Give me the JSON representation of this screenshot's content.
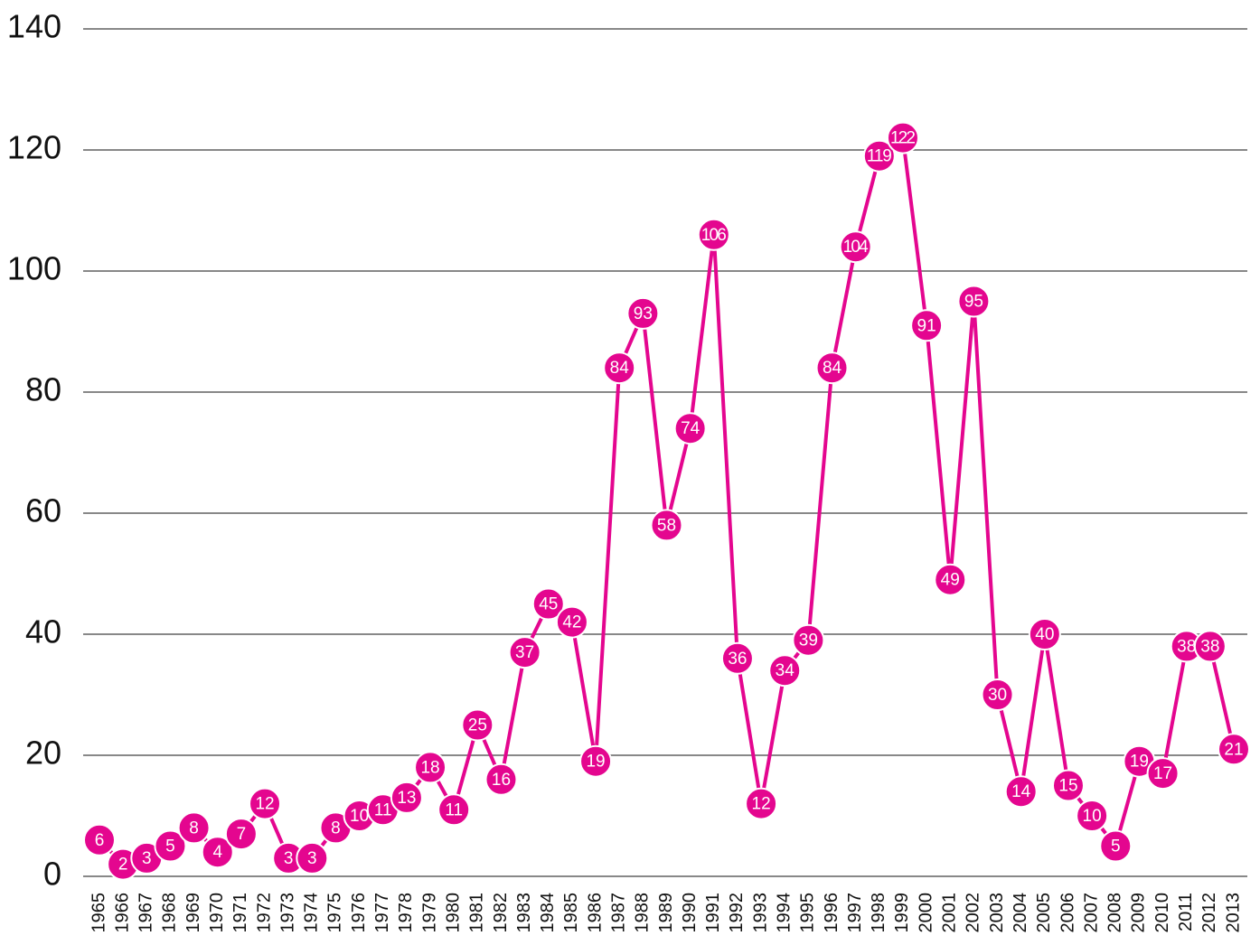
{
  "chart_data": {
    "type": "line",
    "categories": [
      "1965",
      "1966",
      "1967",
      "1968",
      "1969",
      "1970",
      "1971",
      "1972",
      "1973",
      "1974",
      "1975",
      "1976",
      "1977",
      "1978",
      "1979",
      "1980",
      "1981",
      "1982",
      "1983",
      "1984",
      "1985",
      "1986",
      "1987",
      "1988",
      "1989",
      "1990",
      "1991",
      "1992",
      "1993",
      "1994",
      "1995",
      "1996",
      "1997",
      "1998",
      "1999",
      "2000",
      "2001",
      "2002",
      "2003",
      "2004",
      "2005",
      "2006",
      "2007",
      "2008",
      "2009",
      "2010",
      "2011",
      "2012",
      "2013"
    ],
    "values": [
      6,
      2,
      3,
      5,
      8,
      4,
      7,
      12,
      3,
      3,
      8,
      10,
      11,
      13,
      18,
      11,
      25,
      16,
      37,
      45,
      42,
      19,
      84,
      93,
      58,
      74,
      106,
      36,
      12,
      34,
      39,
      84,
      104,
      119,
      122,
      91,
      49,
      95,
      30,
      14,
      40,
      15,
      10,
      5,
      19,
      17,
      38,
      38,
      21
    ],
    "color": "#e4068f",
    "ylim": [
      0,
      140
    ],
    "yticks": [
      0,
      20,
      40,
      60,
      80,
      100,
      120,
      140
    ],
    "grid": true
  }
}
